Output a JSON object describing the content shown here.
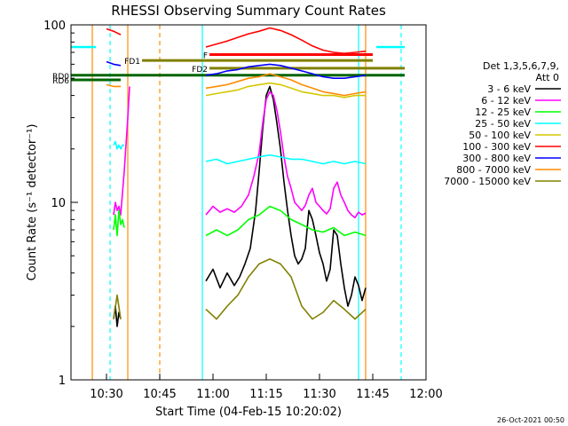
{
  "chart_data": {
    "type": "line",
    "title": "RHESSI Observing Summary Count Rates",
    "xlabel": "Start Time (04-Feb-15 10:20:02)",
    "ylabel": "Count Rate (s⁻¹ detector⁻¹)",
    "footer_date": "26-Oct-2021 00:50",
    "xlim_min": [
      620,
      720
    ],
    "ylim": [
      1,
      100
    ],
    "yscale": "log",
    "x_ticks": [
      {
        "min": 630,
        "label": "10:30"
      },
      {
        "min": 645,
        "label": "10:45"
      },
      {
        "min": 660,
        "label": "11:00"
      },
      {
        "min": 675,
        "label": "11:15"
      },
      {
        "min": 690,
        "label": "11:30"
      },
      {
        "min": 705,
        "label": "11:45"
      },
      {
        "min": 720,
        "label": "12:00"
      }
    ],
    "y_ticks": [
      {
        "value": 1,
        "label": "1"
      },
      {
        "value": 10,
        "label": "10"
      },
      {
        "value": 100,
        "label": "100"
      }
    ],
    "legend": {
      "header": [
        "Det 1,3,5,6,7,9,",
        "Att 0"
      ],
      "placement": "right"
    },
    "series": [
      {
        "name": "3 - 6 keV",
        "color": "#000000",
        "segments": [
          {
            "x": [
              632,
              632.5,
              633,
              633.5,
              634
            ],
            "y": [
              2.2,
              2.6,
              2.0,
              2.4,
              2.2
            ]
          },
          {
            "x": [
              658,
              660,
              662,
              664,
              666,
              667.5,
              669,
              670.5,
              672,
              673,
              674,
              675,
              676,
              677,
              678,
              679,
              680,
              681,
              682,
              683,
              684,
              685,
              686,
              687,
              688,
              689,
              690,
              691,
              692,
              693,
              694,
              695,
              696,
              697,
              698,
              699,
              700,
              701,
              702,
              703
            ],
            "y": [
              3.6,
              4.2,
              3.3,
              4.0,
              3.4,
              3.8,
              4.5,
              5.5,
              9.0,
              15,
              26,
              40,
              45,
              38,
              28,
              20,
              13,
              9.0,
              6.5,
              5.0,
              4.5,
              4.8,
              5.5,
              9.0,
              8.0,
              6.5,
              5.2,
              4.5,
              3.6,
              4.2,
              7.0,
              6.5,
              4.5,
              3.3,
              2.6,
              3.0,
              3.8,
              3.4,
              2.8,
              3.3
            ]
          }
        ]
      },
      {
        "name": "6 - 12 keV",
        "color": "#ff00ff",
        "segments": [
          {
            "x": [
              632,
              632.5,
              633,
              633.5,
              634,
              635,
              636,
              636.5
            ],
            "y": [
              8.5,
              10,
              9.0,
              9.5,
              8.5,
              15,
              30,
              45
            ]
          },
          {
            "x": [
              658,
              660,
              662,
              664,
              666,
              668,
              670,
              671.5,
              673,
              674,
              675,
              676,
              677,
              678,
              679,
              680,
              681,
              682,
              683,
              684,
              685,
              686,
              687,
              688,
              689,
              690,
              691,
              692,
              693,
              694,
              695,
              696,
              697,
              698,
              699,
              700,
              701,
              702,
              703
            ],
            "y": [
              8.5,
              9.5,
              8.8,
              9.2,
              8.8,
              9.5,
              11,
              14,
              19,
              28,
              38,
              42,
              40,
              33,
              25,
              18,
              14,
              12,
              10,
              9.5,
              9.0,
              9.6,
              11,
              12,
              10,
              9.5,
              9.0,
              8.6,
              9.2,
              12,
              13,
              11,
              10,
              9.0,
              8.5,
              8.2,
              8.8,
              8.5,
              8.7
            ]
          }
        ]
      },
      {
        "name": "12 - 25 keV",
        "color": "#00ff00",
        "segments": [
          {
            "x": [
              632,
              632.5,
              633,
              633.5,
              634,
              634.5,
              635
            ],
            "y": [
              7.0,
              8.5,
              6.5,
              9.0,
              7.5,
              8.0,
              7.2
            ]
          },
          {
            "x": [
              658,
              661,
              664,
              667,
              670,
              673,
              676,
              679,
              682,
              685,
              688,
              691,
              694,
              697,
              700,
              703
            ],
            "y": [
              6.5,
              7.0,
              6.5,
              7.0,
              8.0,
              8.5,
              9.5,
              9.0,
              8.0,
              7.5,
              7.0,
              6.8,
              7.2,
              6.5,
              6.8,
              6.5
            ]
          }
        ]
      },
      {
        "name": "25 - 50 keV",
        "color": "#00ffff",
        "segments": [
          {
            "x": [
              632,
              632.5,
              633,
              633.5,
              634,
              634.5,
              635
            ],
            "y": [
              21,
              22,
              20,
              21,
              20,
              21,
              21
            ]
          },
          {
            "x": [
              658,
              661,
              664,
              667,
              670,
              673,
              676,
              679,
              682,
              685,
              688,
              691,
              694,
              697,
              700,
              703
            ],
            "y": [
              17,
              17.5,
              16.5,
              17,
              17.5,
              18,
              18.5,
              18,
              17.5,
              17.5,
              17,
              16.5,
              17,
              16.5,
              17,
              16.5
            ]
          }
        ]
      },
      {
        "name": "50 - 100 keV",
        "color": "#d4c800",
        "segments": [
          {
            "x": [
              658,
              661,
              664,
              667,
              670,
              673,
              676,
              679,
              682,
              685,
              688,
              691,
              694,
              697,
              700,
              703
            ],
            "y": [
              40,
              41,
              42,
              43,
              45,
              46,
              47,
              46,
              44,
              42,
              41,
              40,
              40,
              39,
              40,
              40
            ]
          }
        ]
      },
      {
        "name": "100 - 300 keV",
        "color": "#ff0000",
        "segments": [
          {
            "x": [
              630,
              632,
              634
            ],
            "y": [
              95,
              92,
              88
            ]
          },
          {
            "x": [
              658,
              661,
              664,
              667,
              670,
              673,
              676,
              679,
              682,
              685,
              688,
              691,
              694,
              697,
              700,
              703
            ],
            "y": [
              75,
              78,
              81,
              85,
              89,
              92,
              96,
              93,
              88,
              82,
              76,
              72,
              70,
              69,
              70,
              71
            ]
          }
        ]
      },
      {
        "name": "300 - 800 keV",
        "color": "#0000ff",
        "segments": [
          {
            "x": [
              630,
              632,
              634
            ],
            "y": [
              62,
              60,
              59
            ]
          },
          {
            "x": [
              658,
              661,
              664,
              667,
              670,
              673,
              676,
              679,
              682,
              685,
              688,
              691,
              694,
              697,
              700,
              703
            ],
            "y": [
              52,
              53,
              55,
              56,
              58,
              59,
              60,
              59,
              57,
              55,
              53,
              51,
              50,
              50,
              51,
              52
            ]
          }
        ]
      },
      {
        "name": "800 - 7000 keV",
        "color": "#ff8c00",
        "segments": [
          {
            "x": [
              630,
              632,
              634
            ],
            "y": [
              46,
              45,
              45
            ]
          },
          {
            "x": [
              658,
              661,
              664,
              667,
              670,
              673,
              676,
              679,
              682,
              685,
              688,
              691,
              694,
              697,
              700,
              703
            ],
            "y": [
              44,
              45,
              46,
              48,
              50,
              51,
              53,
              51,
              49,
              46,
              44,
              42,
              41,
              40,
              41,
              42
            ]
          }
        ]
      },
      {
        "name": "7000 - 15000 keV",
        "color": "#808000",
        "segments": [
          {
            "x": [
              632,
              633,
              634
            ],
            "y": [
              2.2,
              3.0,
              2.2
            ]
          },
          {
            "x": [
              658,
              661,
              664,
              667,
              670,
              673,
              676,
              679,
              682,
              685,
              688,
              691,
              694,
              697,
              700,
              703
            ],
            "y": [
              2.5,
              2.2,
              2.6,
              3.0,
              3.8,
              4.5,
              4.8,
              4.5,
              3.8,
              2.6,
              2.2,
              2.4,
              2.8,
              2.5,
              2.2,
              2.5
            ]
          }
        ]
      }
    ],
    "state_bars": [
      {
        "label": "RD0",
        "color": "#006400",
        "y": 52,
        "from": 620,
        "to": 714,
        "label_side": "left"
      },
      {
        "label": "RD6",
        "color": "#006400",
        "y": 49,
        "from": 620,
        "to": 634,
        "label_side": "left"
      },
      {
        "label": "FD1",
        "color": "#808000",
        "y": 63,
        "from": 640,
        "to": 705,
        "label_side": "left"
      },
      {
        "label": "FD2",
        "color": "#808000",
        "y": 57,
        "from": 659,
        "to": 714,
        "label_side": "left"
      },
      {
        "label": "F",
        "color": "#ff0000",
        "y": 68,
        "from": 659,
        "to": 705,
        "label_side": "left"
      }
    ],
    "vertical_markers": [
      {
        "x": 626,
        "color": "#ff8c00",
        "style": "solid"
      },
      {
        "x": 636,
        "color": "#ff8c00",
        "style": "solid"
      },
      {
        "x": 645,
        "color": "#ff8c00",
        "style": "dashed"
      },
      {
        "x": 631,
        "color": "#00ffff",
        "style": "dashed"
      },
      {
        "x": 657,
        "color": "#00ffff",
        "style": "solid"
      },
      {
        "x": 701,
        "color": "#00ffff",
        "style": "solid"
      },
      {
        "x": 703,
        "color": "#ff8c00",
        "style": "solid"
      },
      {
        "x": 713,
        "color": "#00ffff",
        "style": "dashed"
      }
    ],
    "baseline": {
      "color": "#00ffff",
      "y": 75,
      "segments": [
        [
          620,
          627
        ],
        [
          706,
          714
        ]
      ]
    }
  }
}
